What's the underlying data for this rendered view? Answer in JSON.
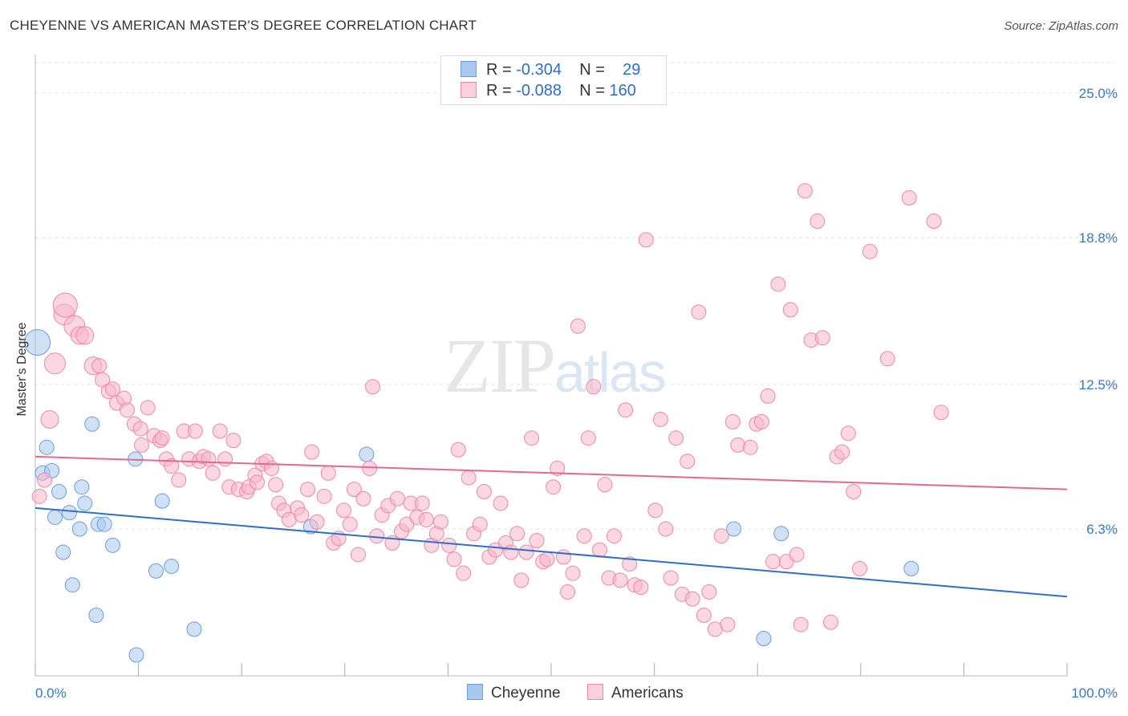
{
  "title": "CHEYENNE VS AMERICAN MASTER'S DEGREE CORRELATION CHART",
  "source": "Source: ZipAtlas.com",
  "watermark": {
    "main": "ZIP",
    "sub": "atlas"
  },
  "legend": {
    "rows": [
      {
        "r_label": "R =",
        "r_value": "-0.304",
        "n_label": "N =",
        "n_value": "29",
        "color": "#a9c8ee"
      },
      {
        "r_label": "R =",
        "r_value": "-0.088",
        "n_label": "N =",
        "n_value": "160",
        "color": "#f7b6cb"
      }
    ]
  },
  "bottom_legend": [
    {
      "label": "Cheyenne",
      "color": "#a9c8ee"
    },
    {
      "label": "Americans",
      "color": "#f7b6cb"
    }
  ],
  "chart_data": {
    "type": "scatter",
    "title": "CHEYENNE VS AMERICAN MASTER'S DEGREE CORRELATION CHART",
    "xlabel": "",
    "ylabel": "Master's Degree",
    "xlim": [
      0,
      100
    ],
    "ylim": [
      0,
      26.3
    ],
    "x_tick_labels": [
      {
        "value": 0,
        "label": "0.0%"
      },
      {
        "value": 100,
        "label": "100.0%"
      }
    ],
    "y_tick_labels": [
      {
        "value": 6.3,
        "label": "6.3%"
      },
      {
        "value": 12.5,
        "label": "12.5%"
      },
      {
        "value": 18.8,
        "label": "18.8%"
      },
      {
        "value": 25.0,
        "label": "25.0%"
      }
    ],
    "grid": true,
    "series": [
      {
        "name": "Cheyenne",
        "color": "#a9c8ee",
        "stroke": "#6c9edb",
        "trend": {
          "x": [
            0,
            100
          ],
          "y": [
            7.2,
            3.4
          ],
          "color": "#2f6fc6"
        },
        "points": [
          [
            0.2,
            14.3,
            16
          ],
          [
            1.1,
            9.8,
            9
          ],
          [
            0.7,
            8.7,
            9
          ],
          [
            1.6,
            8.8,
            9
          ],
          [
            2.3,
            7.9,
            9
          ],
          [
            1.9,
            6.8,
            9
          ],
          [
            3.3,
            7.0,
            9
          ],
          [
            4.3,
            6.3,
            9
          ],
          [
            4.5,
            8.1,
            9
          ],
          [
            4.8,
            7.4,
            9
          ],
          [
            6.1,
            6.5,
            9
          ],
          [
            6.7,
            6.5,
            9
          ],
          [
            2.7,
            5.3,
            9
          ],
          [
            7.5,
            5.6,
            9
          ],
          [
            3.6,
            3.9,
            9
          ],
          [
            5.9,
            2.6,
            9
          ],
          [
            5.5,
            10.8,
            9
          ],
          [
            9.7,
            9.3,
            9
          ],
          [
            12.3,
            7.5,
            9
          ],
          [
            11.7,
            4.5,
            9
          ],
          [
            13.2,
            4.7,
            9
          ],
          [
            15.4,
            2.0,
            9
          ],
          [
            9.8,
            0.9,
            9
          ],
          [
            26.7,
            6.4,
            9
          ],
          [
            32.1,
            9.5,
            9
          ],
          [
            67.7,
            6.3,
            9
          ],
          [
            72.3,
            6.1,
            9
          ],
          [
            70.6,
            1.6,
            9
          ],
          [
            84.9,
            4.6,
            9
          ]
        ]
      },
      {
        "name": "Americans",
        "color": "#f7b6cb",
        "stroke": "#ea8aaa",
        "trend": {
          "x": [
            0,
            100
          ],
          "y": [
            9.4,
            8.0
          ],
          "color": "#e06a93"
        },
        "points": [
          [
            0.4,
            7.7,
            9
          ],
          [
            0.9,
            8.4,
            9
          ],
          [
            1.4,
            11.0,
            11
          ],
          [
            1.9,
            13.4,
            13
          ],
          [
            2.8,
            15.5,
            13
          ],
          [
            2.9,
            15.9,
            15
          ],
          [
            3.8,
            15.0,
            13
          ],
          [
            4.3,
            14.6,
            11
          ],
          [
            4.8,
            14.6,
            11
          ],
          [
            5.6,
            13.3,
            11
          ],
          [
            6.2,
            13.3,
            9
          ],
          [
            6.5,
            12.7,
            9
          ],
          [
            7.1,
            12.2,
            9
          ],
          [
            7.5,
            12.3,
            9
          ],
          [
            7.9,
            11.7,
            9
          ],
          [
            8.6,
            11.9,
            9
          ],
          [
            8.9,
            11.4,
            9
          ],
          [
            9.6,
            10.8,
            9
          ],
          [
            10.2,
            10.6,
            9
          ],
          [
            10.3,
            9.9,
            9
          ],
          [
            10.9,
            11.5,
            9
          ],
          [
            11.5,
            10.3,
            9
          ],
          [
            12.1,
            10.1,
            9
          ],
          [
            12.3,
            10.2,
            9
          ],
          [
            12.7,
            9.3,
            9
          ],
          [
            13.2,
            9.0,
            9
          ],
          [
            13.9,
            8.4,
            9
          ],
          [
            14.4,
            10.5,
            9
          ],
          [
            14.9,
            9.3,
            9
          ],
          [
            15.5,
            10.5,
            9
          ],
          [
            15.9,
            9.2,
            9
          ],
          [
            16.3,
            9.4,
            9
          ],
          [
            16.8,
            9.3,
            9
          ],
          [
            17.2,
            8.7,
            9
          ],
          [
            17.9,
            10.5,
            9
          ],
          [
            18.4,
            9.3,
            9
          ],
          [
            18.8,
            8.1,
            9
          ],
          [
            19.2,
            10.1,
            9
          ],
          [
            19.7,
            8.0,
            9
          ],
          [
            20.5,
            7.9,
            9
          ],
          [
            20.7,
            8.1,
            9
          ],
          [
            21.3,
            8.6,
            9
          ],
          [
            21.5,
            8.3,
            9
          ],
          [
            22.0,
            9.1,
            9
          ],
          [
            22.4,
            9.2,
            9
          ],
          [
            22.9,
            8.9,
            9
          ],
          [
            23.3,
            8.2,
            9
          ],
          [
            23.6,
            7.4,
            9
          ],
          [
            24.1,
            7.1,
            9
          ],
          [
            24.6,
            6.7,
            9
          ],
          [
            25.4,
            7.2,
            9
          ],
          [
            25.8,
            6.9,
            9
          ],
          [
            26.4,
            8.0,
            9
          ],
          [
            26.8,
            9.6,
            9
          ],
          [
            27.3,
            6.6,
            9
          ],
          [
            28.0,
            7.7,
            9
          ],
          [
            28.4,
            8.7,
            9
          ],
          [
            28.9,
            5.7,
            9
          ],
          [
            29.4,
            5.9,
            9
          ],
          [
            29.9,
            7.1,
            9
          ],
          [
            30.5,
            6.5,
            9
          ],
          [
            30.9,
            8.0,
            9
          ],
          [
            31.3,
            5.2,
            9
          ],
          [
            31.8,
            7.6,
            9
          ],
          [
            32.4,
            8.9,
            9
          ],
          [
            32.7,
            12.4,
            9
          ],
          [
            33.1,
            6.0,
            9
          ],
          [
            33.6,
            6.9,
            9
          ],
          [
            34.2,
            7.3,
            9
          ],
          [
            34.6,
            5.7,
            9
          ],
          [
            35.1,
            7.6,
            9
          ],
          [
            35.5,
            6.2,
            9
          ],
          [
            36.0,
            6.5,
            9
          ],
          [
            36.4,
            7.4,
            9
          ],
          [
            37.0,
            6.8,
            9
          ],
          [
            37.5,
            7.4,
            9
          ],
          [
            37.9,
            6.7,
            9
          ],
          [
            38.4,
            5.6,
            9
          ],
          [
            38.9,
            6.1,
            9
          ],
          [
            39.3,
            6.6,
            9
          ],
          [
            40.1,
            5.6,
            9
          ],
          [
            40.6,
            5.0,
            9
          ],
          [
            41.0,
            9.7,
            9
          ],
          [
            41.5,
            4.4,
            9
          ],
          [
            42.0,
            8.5,
            9
          ],
          [
            42.5,
            6.1,
            9
          ],
          [
            43.1,
            6.5,
            9
          ],
          [
            43.5,
            7.9,
            9
          ],
          [
            44.0,
            5.1,
            9
          ],
          [
            44.6,
            5.4,
            9
          ],
          [
            45.1,
            7.4,
            9
          ],
          [
            45.6,
            5.7,
            9
          ],
          [
            46.1,
            5.3,
            9
          ],
          [
            46.7,
            6.1,
            9
          ],
          [
            47.1,
            4.1,
            9
          ],
          [
            47.6,
            5.3,
            9
          ],
          [
            48.1,
            10.2,
            9
          ],
          [
            48.6,
            5.8,
            9
          ],
          [
            49.2,
            4.9,
            9
          ],
          [
            49.6,
            5.0,
            9
          ],
          [
            50.2,
            8.1,
            9
          ],
          [
            50.6,
            8.9,
            9
          ],
          [
            51.2,
            5.1,
            9
          ],
          [
            51.6,
            3.6,
            9
          ],
          [
            52.1,
            4.4,
            9
          ],
          [
            52.6,
            15.0,
            9
          ],
          [
            53.2,
            6.0,
            9
          ],
          [
            53.6,
            10.2,
            9
          ],
          [
            54.1,
            12.4,
            9
          ],
          [
            54.7,
            5.4,
            9
          ],
          [
            55.2,
            8.2,
            9
          ],
          [
            55.6,
            4.2,
            9
          ],
          [
            56.1,
            6.0,
            9
          ],
          [
            56.7,
            4.1,
            9
          ],
          [
            57.2,
            11.4,
            9
          ],
          [
            57.6,
            4.8,
            9
          ],
          [
            58.1,
            3.9,
            9
          ],
          [
            58.7,
            3.8,
            9
          ],
          [
            59.2,
            18.7,
            9
          ],
          [
            60.1,
            7.1,
            9
          ],
          [
            60.6,
            11.0,
            9
          ],
          [
            61.1,
            6.3,
            9
          ],
          [
            61.6,
            4.2,
            9
          ],
          [
            62.1,
            10.2,
            9
          ],
          [
            62.7,
            3.5,
            9
          ],
          [
            63.2,
            9.2,
            9
          ],
          [
            63.7,
            3.3,
            9
          ],
          [
            64.3,
            15.6,
            9
          ],
          [
            64.8,
            2.6,
            9
          ],
          [
            65.3,
            3.6,
            9
          ],
          [
            65.9,
            2.0,
            9
          ],
          [
            66.5,
            6.0,
            9
          ],
          [
            67.1,
            2.2,
            9
          ],
          [
            67.6,
            10.9,
            9
          ],
          [
            68.1,
            9.9,
            9
          ],
          [
            69.3,
            9.8,
            9
          ],
          [
            69.9,
            10.8,
            9
          ],
          [
            70.4,
            10.9,
            9
          ],
          [
            71.0,
            12.0,
            9
          ],
          [
            71.5,
            4.9,
            9
          ],
          [
            72.0,
            16.8,
            9
          ],
          [
            72.8,
            4.9,
            9
          ],
          [
            73.2,
            15.7,
            9
          ],
          [
            73.8,
            5.2,
            9
          ],
          [
            74.2,
            2.2,
            9
          ],
          [
            74.6,
            20.8,
            9
          ],
          [
            75.2,
            14.4,
            9
          ],
          [
            75.8,
            19.5,
            9
          ],
          [
            76.3,
            14.5,
            9
          ],
          [
            77.1,
            2.3,
            9
          ],
          [
            77.7,
            9.4,
            9
          ],
          [
            78.2,
            9.6,
            9
          ],
          [
            78.8,
            10.4,
            9
          ],
          [
            79.3,
            7.9,
            9
          ],
          [
            79.9,
            4.6,
            9
          ],
          [
            80.9,
            18.2,
            9
          ],
          [
            82.6,
            13.6,
            9
          ],
          [
            84.7,
            20.5,
            9
          ],
          [
            87.1,
            19.5,
            9
          ],
          [
            87.8,
            11.3,
            9
          ]
        ]
      }
    ]
  }
}
